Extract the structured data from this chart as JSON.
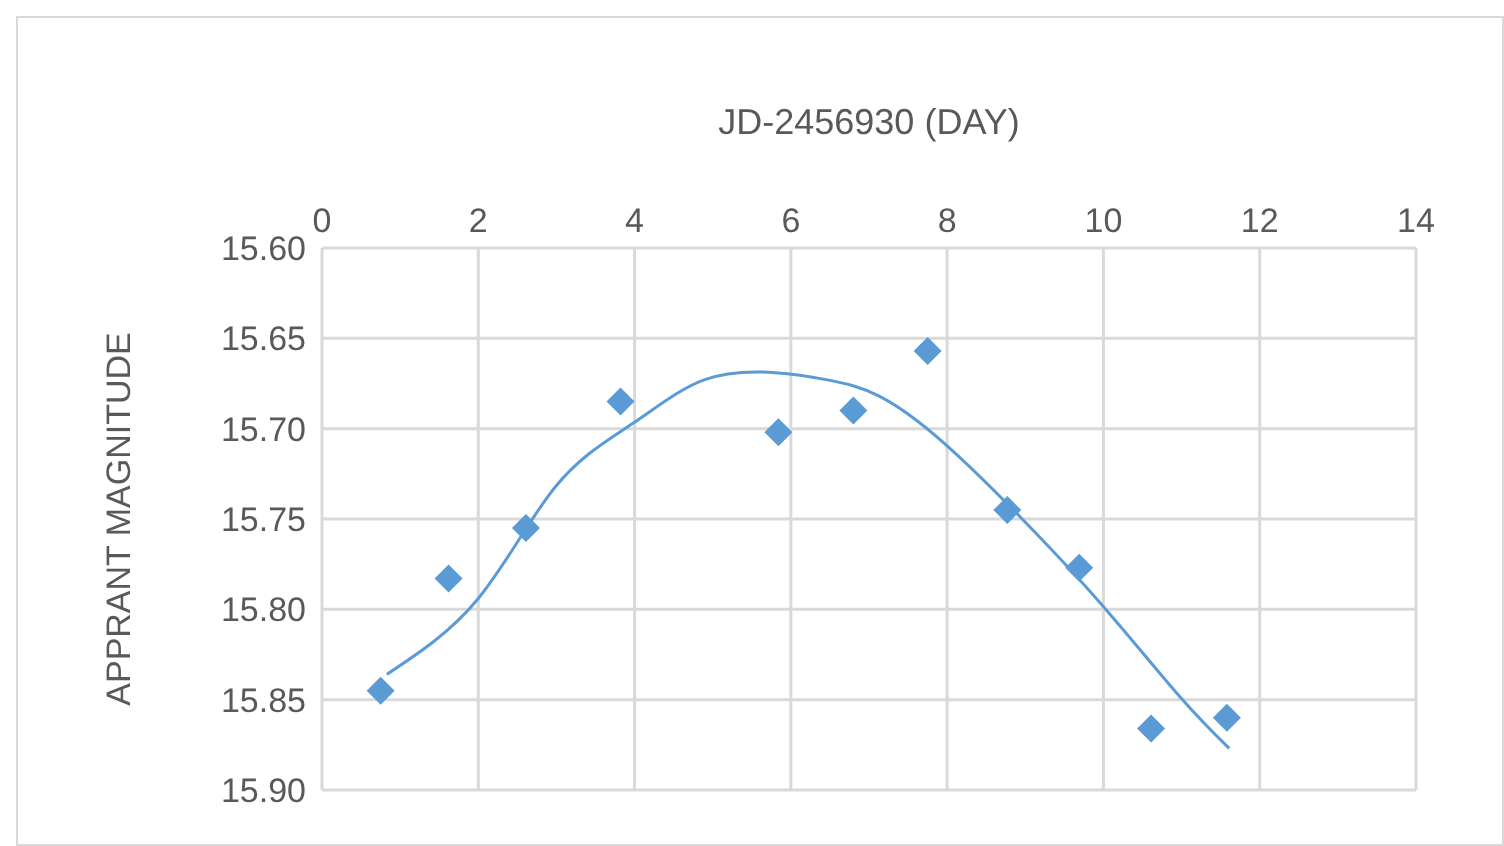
{
  "chart_data": {
    "type": "scatter",
    "xlabel": "JD-2456930 (DAY)",
    "ylabel": "APPRANT MAGNITUDE",
    "xlim": [
      0,
      14
    ],
    "xticks": [
      0,
      2,
      4,
      6,
      8,
      10,
      12,
      14
    ],
    "ylim": [
      15.9,
      15.6
    ],
    "yticks": [
      {
        "value": 15.6,
        "label": "15.60"
      },
      {
        "value": 15.65,
        "label": "15.65"
      },
      {
        "value": 15.7,
        "label": "15.70"
      },
      {
        "value": 15.75,
        "label": "15.75"
      },
      {
        "value": 15.8,
        "label": "15.80"
      },
      {
        "value": 15.85,
        "label": "15.85"
      },
      {
        "value": 15.9,
        "label": "15.90"
      }
    ],
    "grid": true,
    "legend": false,
    "marker": "diamond",
    "series": [
      {
        "color": "#5b9bd5",
        "x": [
          0.75,
          1.62,
          2.61,
          3.82,
          5.84,
          6.8,
          7.75,
          8.77,
          9.69,
          10.61,
          11.58
        ],
        "values": [
          15.845,
          15.783,
          15.755,
          15.685,
          15.702,
          15.69,
          15.657,
          15.745,
          15.777,
          15.866,
          15.86
        ]
      },
      {
        "type": "line",
        "color": "#5b9bd5",
        "marker": "none",
        "line_style": "solid",
        "x": [
          0.83,
          2,
          2.99,
          3.98,
          4.89,
          5.8,
          6.47,
          7.13,
          7.96,
          8.96,
          9.99,
          10.97,
          11.61
        ],
        "values": [
          15.836,
          15.794,
          15.732,
          15.697,
          15.673,
          15.669,
          15.673,
          15.682,
          15.708,
          15.75,
          15.798,
          15.848,
          15.877
        ]
      }
    ]
  }
}
